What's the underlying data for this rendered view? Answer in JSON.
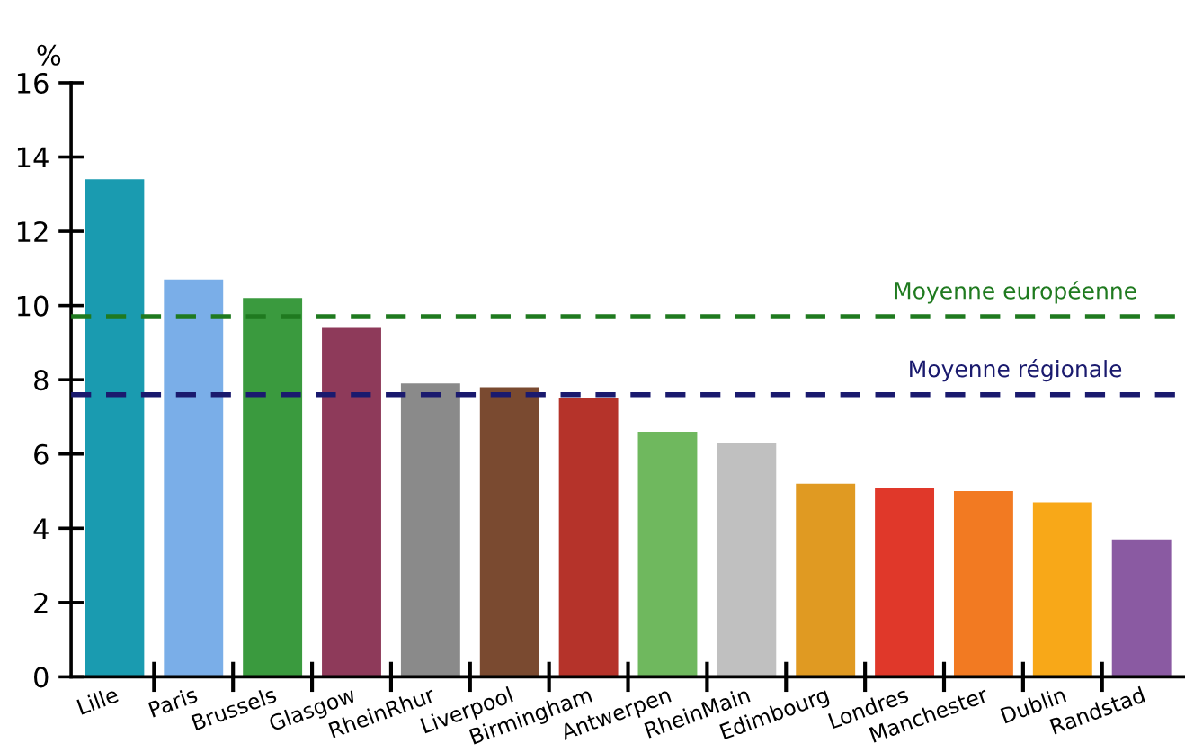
{
  "chart_data": {
    "type": "bar",
    "ylabel": "%",
    "categories": [
      "Lille",
      "Paris",
      "Brussels",
      "Glasgow",
      "RheinRhur",
      "Liverpool",
      "Birmingham",
      "Antwerpen",
      "RheinMain",
      "Edimbourg",
      "Londres",
      "Manchester",
      "Dublin",
      "Randstad"
    ],
    "values": [
      13.4,
      10.7,
      10.2,
      9.4,
      7.9,
      7.8,
      7.5,
      6.6,
      6.3,
      5.2,
      5.1,
      5.0,
      4.7,
      3.7
    ],
    "colors": [
      "#1a9bb0",
      "#7aaee8",
      "#3a9a3e",
      "#8e3a5a",
      "#8a8a8a",
      "#7a4a30",
      "#b5332a",
      "#6fb85e",
      "#c0c0c0",
      "#e09a22",
      "#e0382a",
      "#f27a22",
      "#f8a818",
      "#8a5aa2"
    ],
    "ylim": [
      0,
      16
    ],
    "yticks": [
      0,
      2,
      4,
      6,
      8,
      10,
      12,
      14,
      16
    ],
    "ref_lines": [
      {
        "axis": "y",
        "value": 9.7,
        "label": "Moyenne européenne",
        "color": "#1f7a1f",
        "line_style": "dashed"
      },
      {
        "axis": "y",
        "value": 7.6,
        "label": "Moyenne régionale",
        "color": "#1a1a6e",
        "line_style": "dashed"
      }
    ],
    "grid": false,
    "legend": false
  }
}
